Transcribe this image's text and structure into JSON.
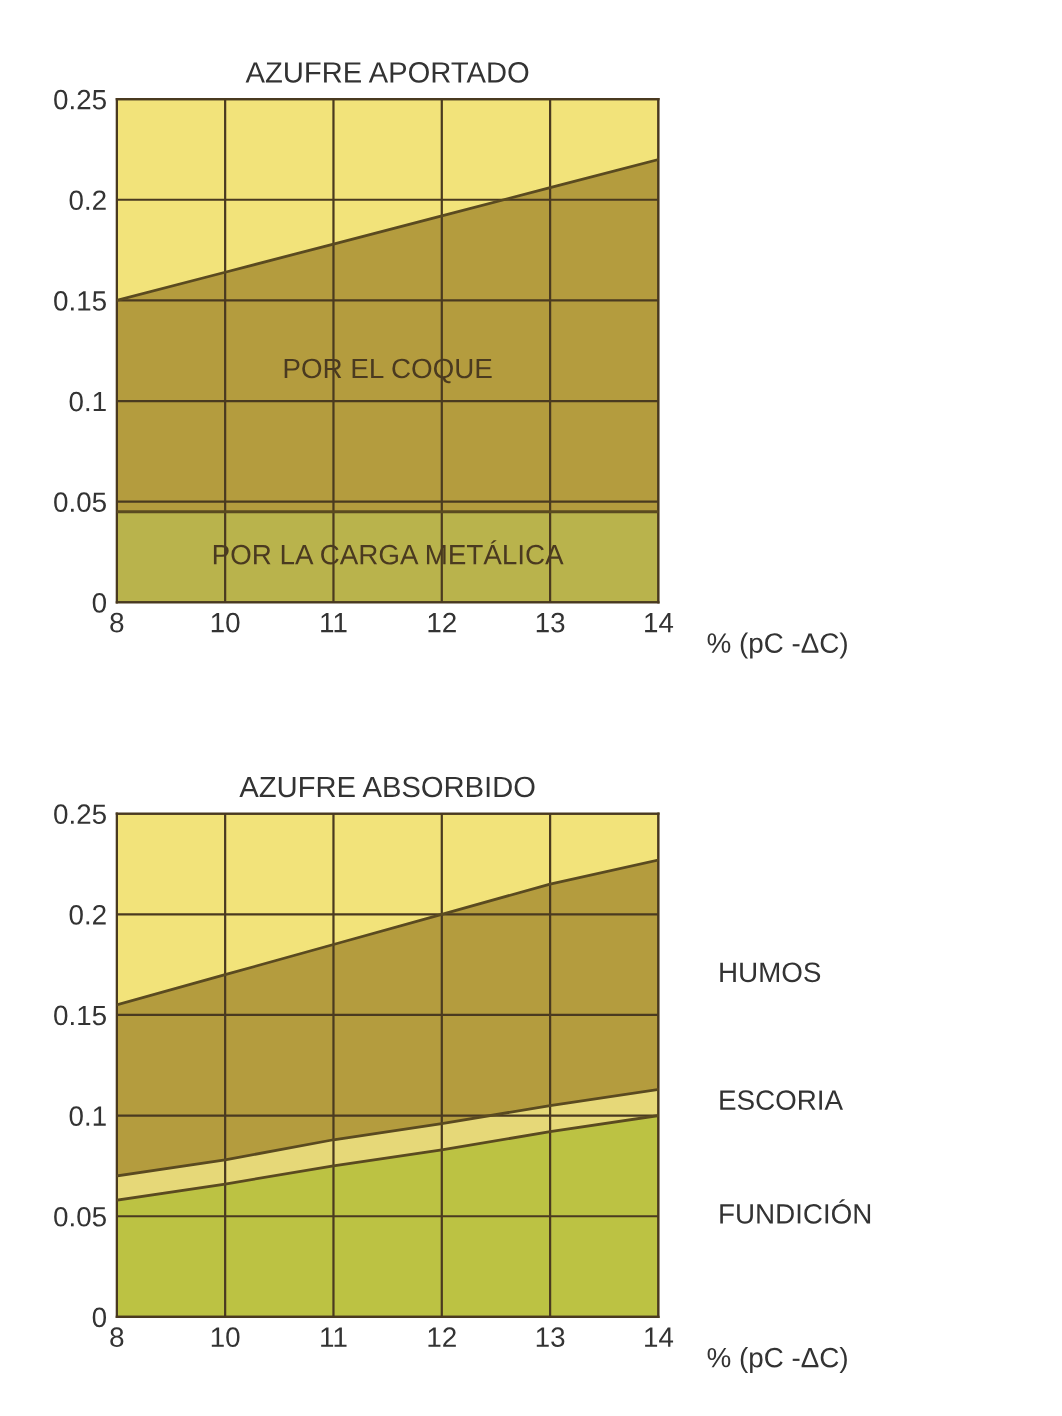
{
  "chart_data": [
    {
      "type": "area",
      "stacked": true,
      "title": "AZUFRE APORTADO",
      "bands": [
        {
          "axis": "y",
          "from": 0,
          "to": 0.25,
          "color": "#f2e37a"
        }
      ],
      "xlabel": "% (pC -ΔC)",
      "categories": [
        "8",
        "10",
        "11",
        "12",
        "13",
        "14"
      ],
      "ylim": [
        0,
        0.25
      ],
      "yticks": [
        0,
        0.05,
        0.1,
        0.15,
        0.2,
        0.25
      ],
      "grid": true,
      "legend": false,
      "series": [
        {
          "name": "POR LA CARGA METÁLICA",
          "color": "#b9b34c",
          "values": [
            0.045,
            0.045,
            0.045,
            0.045,
            0.045,
            0.045
          ]
        },
        {
          "name": "POR EL COQUE",
          "color": "#b49c3e",
          "values": [
            0.105,
            0.119,
            0.133,
            0.147,
            0.161,
            0.175
          ]
        }
      ]
    },
    {
      "type": "area",
      "stacked": true,
      "title": "AZUFRE ABSORBIDO",
      "bands": [
        {
          "axis": "y",
          "from": 0,
          "to": 0.25,
          "color": "#f2e37a"
        }
      ],
      "xlabel": "% (pC -ΔC)",
      "categories": [
        "8",
        "10",
        "11",
        "12",
        "13",
        "14"
      ],
      "ylim": [
        0,
        0.25
      ],
      "yticks": [
        0,
        0.05,
        0.1,
        0.15,
        0.2,
        0.25
      ],
      "grid": true,
      "legend": false,
      "series": [
        {
          "name": "FUNDICIÓN",
          "color": "#bcc243",
          "values": [
            0.058,
            0.066,
            0.075,
            0.083,
            0.092,
            0.1
          ]
        },
        {
          "name": "ESCORIA",
          "color": "#e6d878",
          "values": [
            0.012,
            0.012,
            0.013,
            0.013,
            0.013,
            0.013
          ]
        },
        {
          "name": "HUMOS",
          "color": "#b49c3e",
          "values": [
            0.085,
            0.092,
            0.097,
            0.104,
            0.11,
            0.114
          ]
        }
      ]
    }
  ]
}
